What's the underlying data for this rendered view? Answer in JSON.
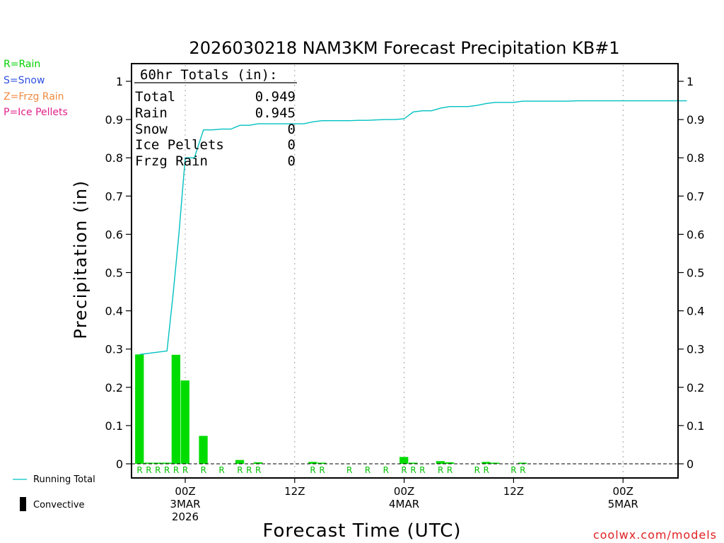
{
  "chart_data": {
    "type": "bar",
    "title": "2026030218 NAM3KM Forecast Precipitation KB#1",
    "xlabel": "Forecast Time (UTC)",
    "ylabel": "Precipitation (in)",
    "ylim": [
      -0.03,
      1.05
    ],
    "xlim_hours": [
      -5,
      55
    ],
    "y_ticks": [
      0,
      0.1,
      0.2,
      0.3,
      0.4,
      0.5,
      0.6,
      0.7,
      0.8,
      0.9,
      1
    ],
    "x_ticks": [
      {
        "h": 0,
        "lines": [
          "00Z",
          "3MAR",
          "2026"
        ]
      },
      {
        "h": 12,
        "lines": [
          "12Z"
        ]
      },
      {
        "h": 24,
        "lines": [
          "00Z",
          "4MAR"
        ]
      },
      {
        "h": 36,
        "lines": [
          "12Z"
        ]
      },
      {
        "h": 48,
        "lines": [
          "00Z",
          "5MAR"
        ]
      }
    ],
    "bars": {
      "name": "Rain",
      "hours": [
        -5,
        -4,
        -3,
        -2,
        -1,
        0,
        1,
        2,
        3,
        4,
        5,
        6,
        7,
        8,
        9,
        10,
        11,
        12,
        13,
        14,
        15,
        16,
        17,
        18,
        19,
        20,
        21,
        22,
        23,
        24,
        25,
        26,
        27,
        28,
        29,
        30,
        31,
        32,
        33,
        34,
        35,
        36,
        37
      ],
      "values": [
        0.286,
        0.003,
        0.003,
        0.003,
        0.285,
        0.218,
        0.0,
        0.073,
        0.0,
        0.0,
        0.0,
        0.01,
        0.0,
        0.004,
        0.0,
        0.0,
        0.0,
        0.0,
        0.0,
        0.005,
        0.003,
        0.0,
        0.0,
        0.0,
        0.0,
        0.0,
        0.0,
        0.0,
        0.0,
        0.018,
        0.003,
        0.0,
        0.0,
        0.007,
        0.004,
        0.0,
        0.0,
        0.0,
        0.005,
        0.003,
        0.0,
        0.0,
        0.003
      ]
    },
    "running_total": {
      "name": "Running Total",
      "hours": [
        -5,
        -4,
        -2,
        -1.3,
        -0.7,
        0,
        1,
        2,
        3,
        4,
        5,
        6,
        7,
        8,
        9,
        10,
        11,
        12,
        13,
        14,
        15,
        16,
        17,
        18,
        19,
        20,
        21,
        22,
        23,
        24,
        25,
        26,
        27,
        28,
        29,
        30,
        31,
        32,
        33,
        34,
        35,
        36,
        37,
        38,
        39,
        40,
        41,
        42,
        43,
        44,
        45,
        46,
        47,
        48,
        49,
        50,
        51,
        52,
        53,
        54,
        55
      ],
      "values": [
        0.286,
        0.289,
        0.295,
        0.45,
        0.6,
        0.8,
        0.8,
        0.873,
        0.873,
        0.875,
        0.875,
        0.885,
        0.885,
        0.889,
        0.889,
        0.889,
        0.889,
        0.889,
        0.889,
        0.894,
        0.897,
        0.897,
        0.897,
        0.897,
        0.898,
        0.898,
        0.899,
        0.9,
        0.9,
        0.902,
        0.92,
        0.923,
        0.923,
        0.93,
        0.934,
        0.934,
        0.934,
        0.937,
        0.942,
        0.945,
        0.945,
        0.945,
        0.948,
        0.948,
        0.948,
        0.948,
        0.948,
        0.948,
        0.949,
        0.949,
        0.949,
        0.949,
        0.949,
        0.949,
        0.949,
        0.949,
        0.949,
        0.949,
        0.949,
        0.949,
        0.949
      ]
    },
    "ptype_hours": [
      -5,
      -4,
      -3,
      -2,
      -1,
      0,
      2,
      4,
      6,
      7,
      8,
      14,
      15,
      18,
      20,
      22,
      24,
      25,
      26,
      28,
      29,
      32,
      33,
      36,
      37
    ],
    "ptype_letter": "R",
    "totals_box": {
      "header": "60hr Totals (in):",
      "rows": [
        {
          "label": "Total",
          "value": "0.949"
        },
        {
          "label": "Rain",
          "value": "0.945"
        },
        {
          "label": "Snow",
          "value": "0"
        },
        {
          "label": "Ice Pellets",
          "value": "0"
        },
        {
          "label": "Frzg Rain",
          "value": "0"
        }
      ]
    },
    "ptype_key": [
      {
        "text": "R=Rain",
        "color": "#00d000"
      },
      {
        "text": "S=Snow",
        "color": "#3050e0"
      },
      {
        "text": "Z=Frzg Rain",
        "color": "#f08a40"
      },
      {
        "text": "P=Ice Pellets",
        "color": "#e0208a"
      }
    ],
    "legend": [
      {
        "text": "Running Total",
        "kind": "line",
        "color": "#00c0c0"
      },
      {
        "text": "Convective",
        "kind": "bar",
        "color": "#000000"
      }
    ],
    "colors": {
      "rain": "#00dc00",
      "line": "#00c0c0",
      "axis": "#000000",
      "grid": "#a0a0a0"
    },
    "credit": "coolwx.com/models"
  }
}
